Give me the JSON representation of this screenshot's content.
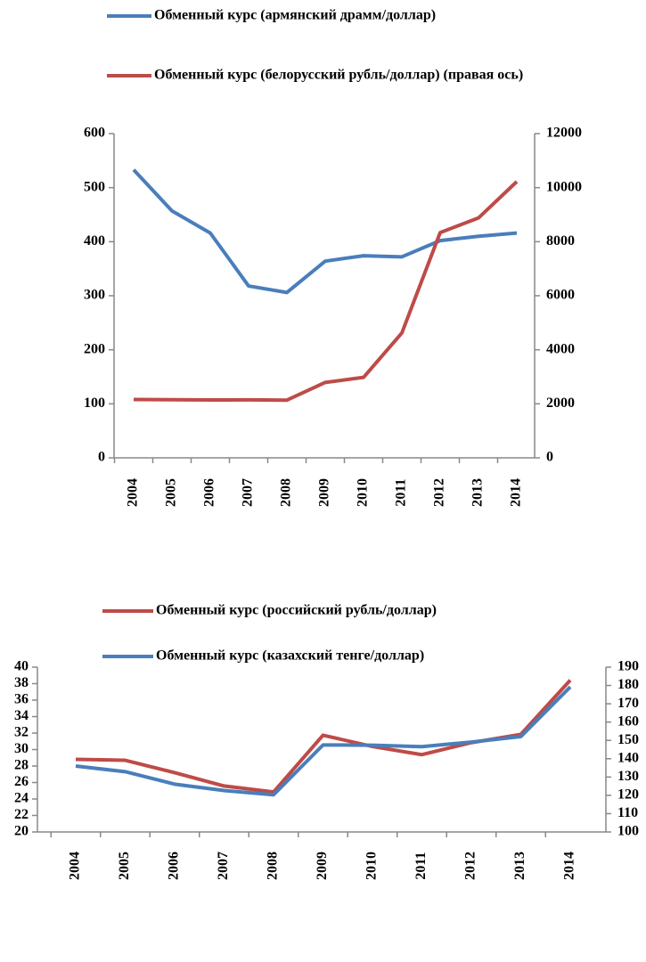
{
  "chart_data": [
    {
      "type": "line",
      "categories": [
        "2004",
        "2005",
        "2006",
        "2007",
        "2008",
        "2009",
        "2010",
        "2011",
        "2012",
        "2013",
        "2014"
      ],
      "series": [
        {
          "name": "Обменный курс (армянский драмм/доллар)",
          "color": "#4a7ebb",
          "values": [
            533,
            457,
            416,
            318,
            306,
            364,
            374,
            372,
            402,
            410,
            416
          ]
        },
        {
          "name": "Обменный курс (белорусский рубль/доллар) (правая ось)",
          "color": "#be4b48",
          "axis": "y2",
          "values": [
            2160,
            2150,
            2144,
            2146,
            2136,
            2790,
            2978,
            4621,
            8336,
            8880,
            10224
          ]
        }
      ],
      "ylim": [
        0,
        600
      ],
      "yticks": [
        0,
        100,
        200,
        300,
        400,
        500,
        600
      ],
      "y2lim": [
        0,
        12000
      ],
      "y2ticks": [
        0,
        2000,
        4000,
        6000,
        8000,
        10000,
        12000
      ]
    },
    {
      "type": "line",
      "categories": [
        "2004",
        "2005",
        "2006",
        "2007",
        "2008",
        "2009",
        "2010",
        "2011",
        "2012",
        "2013",
        "2014"
      ],
      "series": [
        {
          "name": "Обменный курс (российский рубль/доллар)",
          "color": "#be4b48",
          "values": [
            28.81,
            28.7,
            27.19,
            25.58,
            24.85,
            31.74,
            30.37,
            29.38,
            30.84,
            31.84,
            38.42
          ]
        },
        {
          "name": "Обменный курс (казахский тенге/доллар)",
          "color": "#4a7ebb",
          "axis": "y2",
          "values": [
            136.0,
            132.9,
            126.1,
            122.6,
            120.3,
            147.5,
            147.4,
            146.6,
            149.1,
            152.1,
            179.2
          ]
        }
      ],
      "ylim": [
        20,
        40
      ],
      "yticks": [
        20,
        22,
        24,
        26,
        28,
        30,
        32,
        34,
        36,
        38,
        40
      ],
      "y2lim": [
        100,
        190
      ],
      "y2ticks": [
        100,
        110,
        120,
        130,
        140,
        150,
        160,
        170,
        180,
        190
      ]
    }
  ]
}
